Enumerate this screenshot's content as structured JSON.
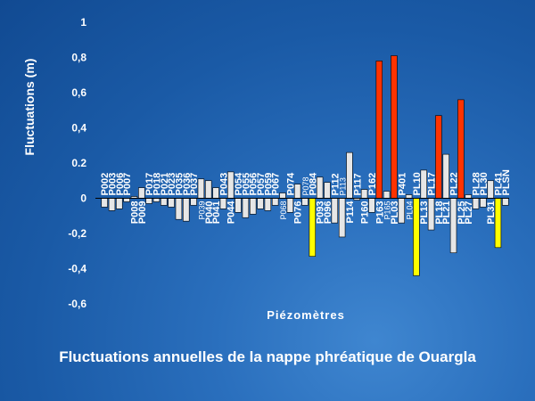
{
  "title": "Fluctuations annuelles de la nappe phréatique de Ouargla",
  "colors": {
    "neutral": "#e6e6e6",
    "rise": "#ff3300",
    "fall": "#ffff00"
  },
  "chart_data": {
    "type": "bar",
    "title": "Fluctuations annuelles de la nappe phréatique de Ouargla",
    "xlabel": "Piézomètres",
    "ylabel": "Fluctuations (m)",
    "ylim": [
      -0.6,
      1.0
    ],
    "yticks": [
      "1",
      "0,8",
      "0,6",
      "0,4",
      "0.2",
      "0",
      "-0,2",
      "-0,4",
      "-0,6"
    ],
    "grid": false,
    "legend": "none",
    "categories": [
      "P002",
      "P003",
      "P006",
      "P007",
      "P008",
      "P009",
      "P017",
      "P018",
      "P021",
      "P023",
      "P035",
      "P036",
      "P037",
      "P039",
      "P040",
      "P041",
      "P043",
      "P044",
      "P054",
      "P055",
      "P056",
      "P057",
      "P059",
      "P067",
      "P068",
      "P074",
      "P076",
      "P078",
      "P084",
      "P093",
      "P096",
      "P112",
      "P113",
      "P114",
      "P117",
      "P160",
      "P162",
      "P163",
      "P165",
      "PL03",
      "P401",
      "PL04",
      "PL10",
      "PL13",
      "PL17",
      "PL18",
      "PL21",
      "PL22",
      "PL25",
      "PL27",
      "PL28",
      "PL30",
      "PL31",
      "PL41",
      "PLSN"
    ],
    "values": [
      -0.05,
      -0.07,
      -0.06,
      -0.02,
      0.01,
      0.06,
      -0.03,
      -0.02,
      -0.04,
      -0.05,
      -0.12,
      -0.13,
      -0.04,
      0.11,
      0.1,
      0.06,
      -0.06,
      0.15,
      -0.08,
      -0.11,
      -0.09,
      -0.06,
      -0.07,
      -0.04,
      0.03,
      -0.08,
      0.08,
      -0.04,
      -0.33,
      0.12,
      0.09,
      -0.14,
      -0.22,
      0.26,
      -0.01,
      0.05,
      -0.08,
      0.78,
      0.04,
      0.81,
      -0.14,
      0.02,
      -0.44,
      0.16,
      -0.18,
      0.47,
      0.25,
      -0.31,
      0.56,
      0.02,
      -0.06,
      -0.05,
      0.1,
      -0.28,
      -0.04
    ],
    "colors": [
      "neutral",
      "neutral",
      "neutral",
      "neutral",
      "neutral",
      "neutral",
      "neutral",
      "neutral",
      "neutral",
      "neutral",
      "neutral",
      "neutral",
      "neutral",
      "neutral",
      "neutral",
      "neutral",
      "neutral",
      "neutral",
      "neutral",
      "neutral",
      "neutral",
      "neutral",
      "neutral",
      "neutral",
      "neutral",
      "neutral",
      "neutral",
      "neutral",
      "fall",
      "neutral",
      "neutral",
      "neutral",
      "neutral",
      "neutral",
      "neutral",
      "neutral",
      "neutral",
      "rise",
      "neutral",
      "rise",
      "neutral",
      "neutral",
      "fall",
      "neutral",
      "neutral",
      "rise",
      "neutral",
      "neutral",
      "rise",
      "neutral",
      "neutral",
      "neutral",
      "neutral",
      "fall",
      "neutral"
    ]
  }
}
